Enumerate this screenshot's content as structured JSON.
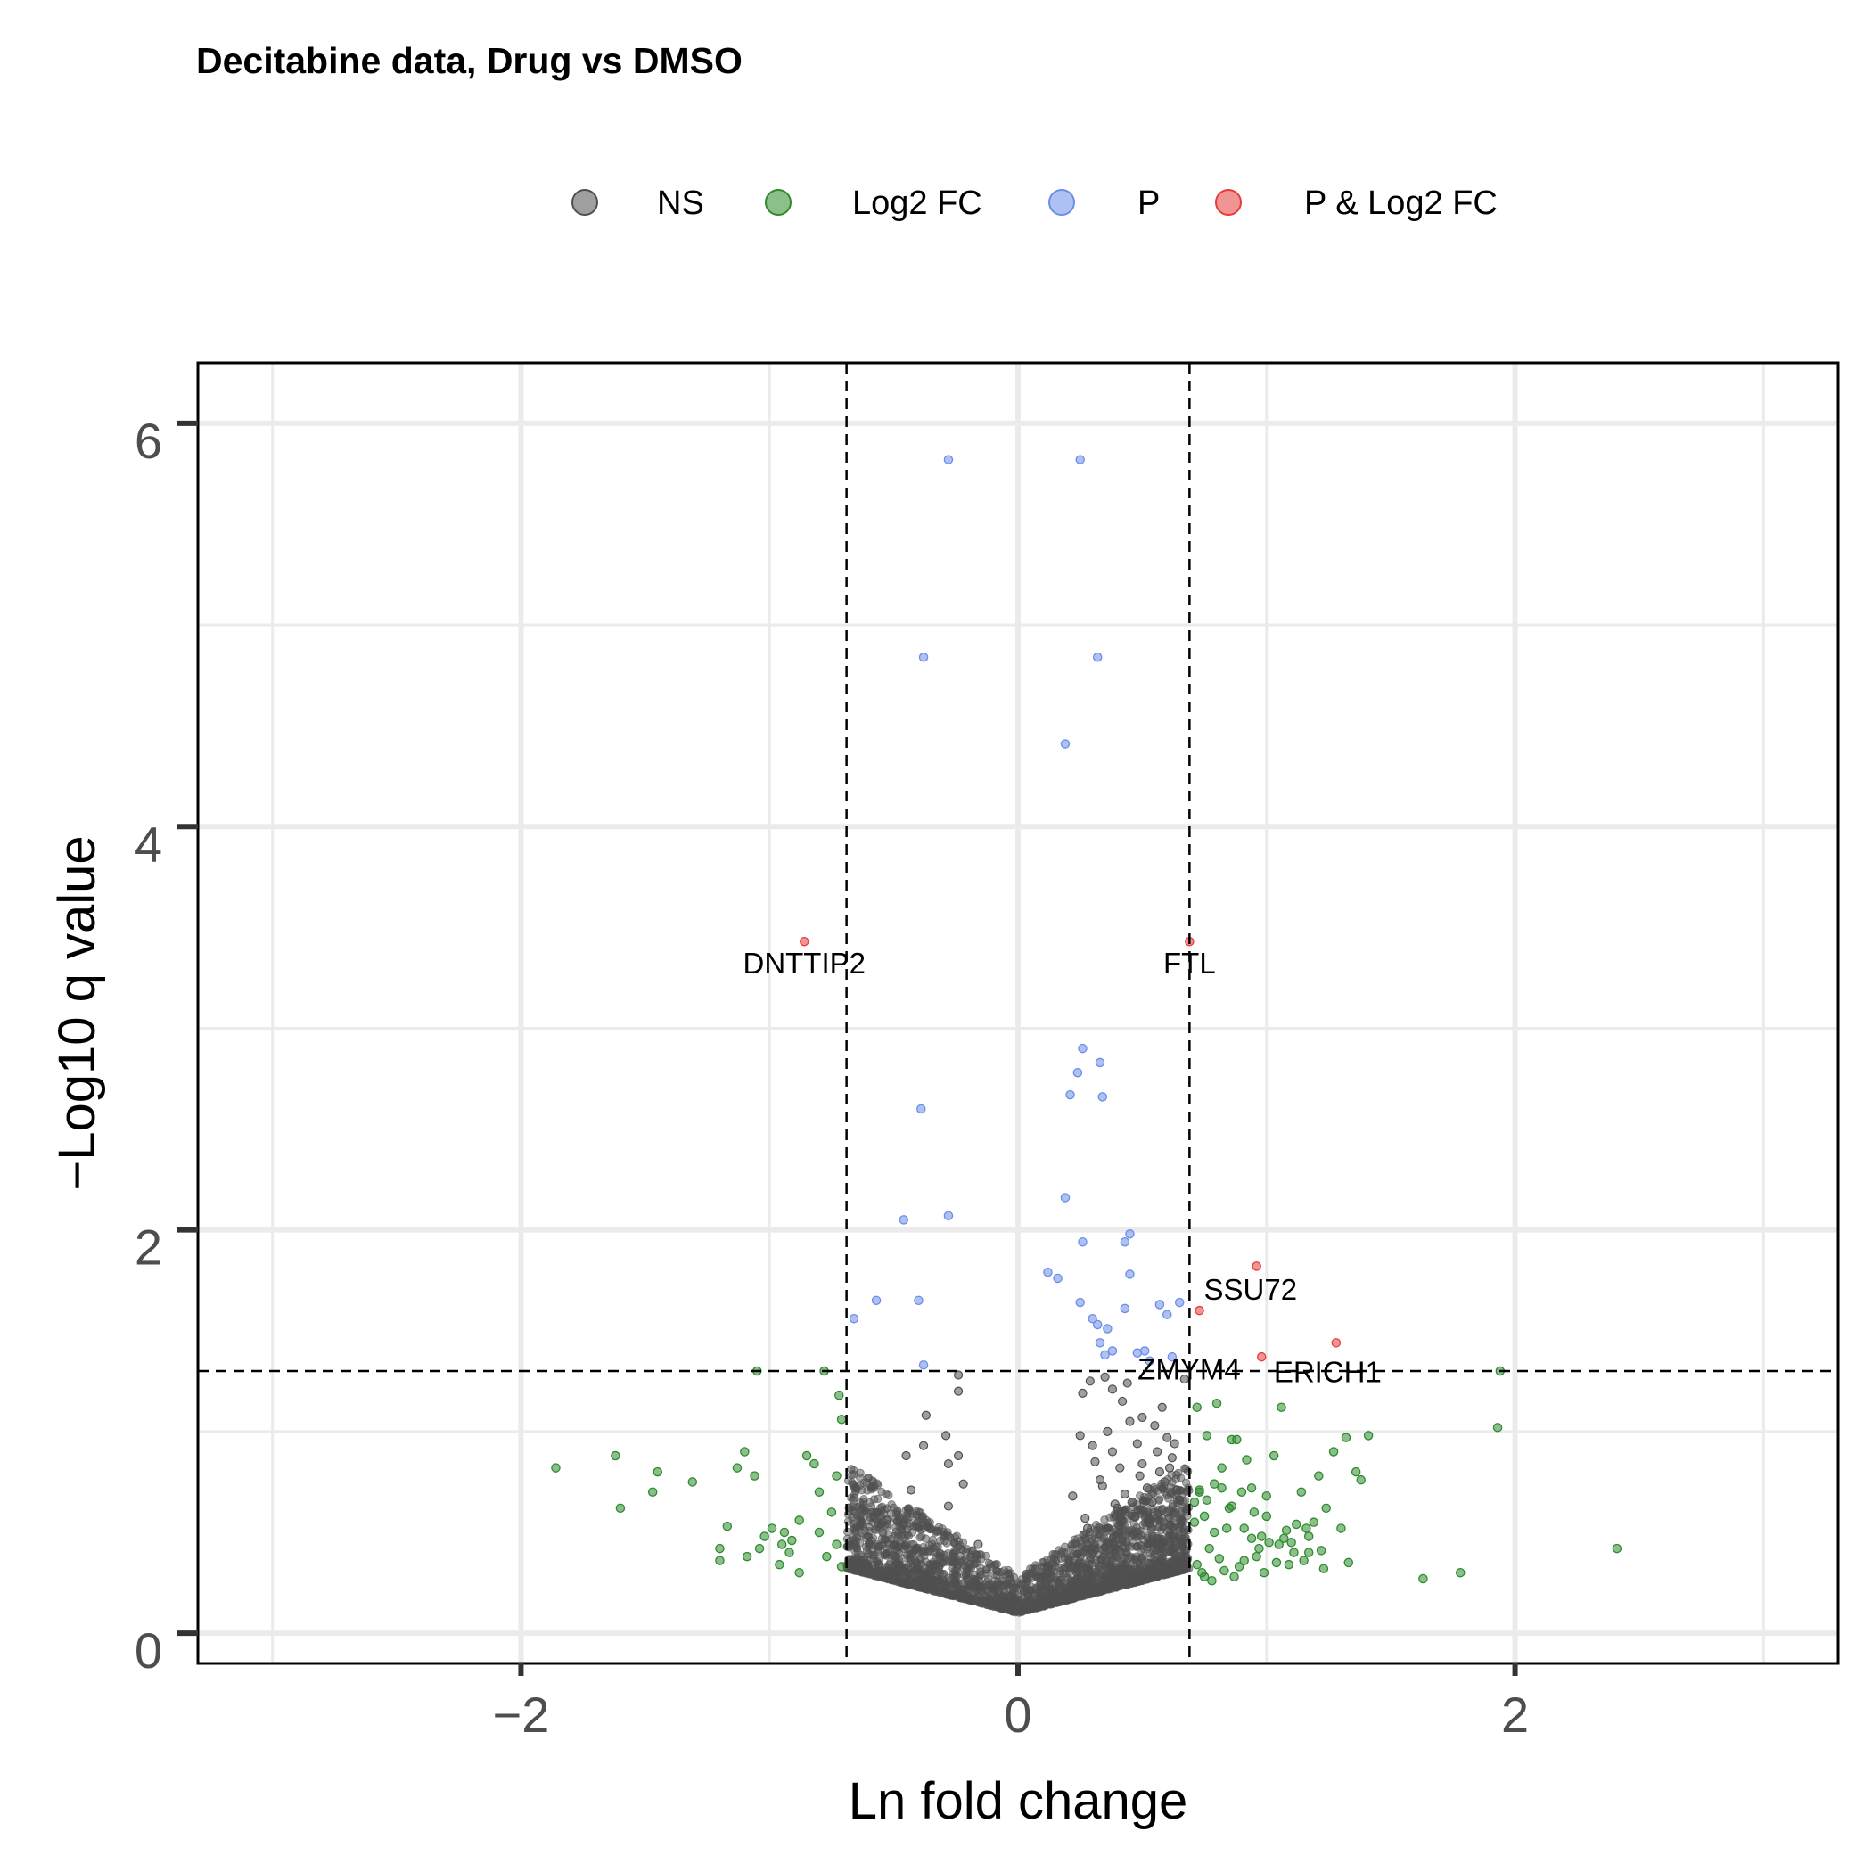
{
  "chart_data": {
    "type": "scatter",
    "title": "Decitabine data, Drug vs DMSO",
    "xlabel": "Ln fold change",
    "ylabel": "−Log10 q value",
    "xlim": [
      -3.3,
      3.3
    ],
    "ylim": [
      -0.15,
      6.3
    ],
    "x_ticks": [
      -2,
      0,
      2
    ],
    "x_tick_labels": [
      "−2",
      "0",
      "2"
    ],
    "y_ticks": [
      0,
      2,
      4,
      6
    ],
    "y_tick_labels": [
      "0",
      "2",
      "4",
      "6"
    ],
    "grid": true,
    "legend_position": "top",
    "thresholds": {
      "fold_change": [
        -0.69,
        0.69
      ],
      "q_value": 1.3
    },
    "colors": {
      "NS": "#505050",
      "Log2 FC": "#2e8b2e",
      "P": "#6b8ee8",
      "P & Log2 FC": "#e63c3c"
    },
    "legend": [
      "NS",
      "Log2 FC",
      "P",
      "P & Log2 FC"
    ],
    "series": [
      {
        "name": "P",
        "color": "#6b8ee8",
        "x": [
          -0.28,
          0.25,
          -0.38,
          0.32,
          0.19,
          0.26,
          0.33,
          0.24,
          0.21,
          0.34,
          -0.39,
          0.19,
          -0.28,
          -0.46,
          0.43,
          0.45,
          0.26,
          0.12,
          0.16,
          0.45,
          -0.57,
          -0.4,
          0.25,
          0.57,
          0.65,
          0.3,
          -0.66,
          0.32,
          0.43,
          0.6,
          0.36,
          0.33,
          0.51,
          0.62,
          0.48,
          0.53,
          0.35,
          0.38,
          -0.38
        ],
        "y": [
          5.82,
          5.82,
          4.84,
          4.84,
          4.41,
          2.9,
          2.83,
          2.78,
          2.67,
          2.66,
          2.6,
          2.16,
          2.07,
          2.05,
          1.94,
          1.98,
          1.94,
          1.79,
          1.76,
          1.78,
          1.65,
          1.65,
          1.64,
          1.63,
          1.64,
          1.56,
          1.56,
          1.53,
          1.61,
          1.58,
          1.51,
          1.44,
          1.4,
          1.37,
          1.39,
          1.35,
          1.38,
          1.4,
          1.33
        ]
      },
      {
        "name": "P & Log2 FC",
        "color": "#e63c3c",
        "x": [
          -0.86,
          0.69,
          0.96,
          0.73,
          1.28,
          0.98
        ],
        "y": [
          3.43,
          3.43,
          1.82,
          1.6,
          1.44,
          1.37
        ]
      },
      {
        "name": "Log2 FC",
        "color": "#2e8b2e",
        "x": [
          -1.86,
          -1.6,
          -1.62,
          -1.45,
          -1.47,
          -1.31,
          -1.17,
          -1.2,
          -1.13,
          -1.1,
          -1.06,
          -1.05,
          -1.02,
          -0.99,
          -0.95,
          -0.94,
          -0.92,
          -0.88,
          -0.85,
          -0.82,
          -0.8,
          -0.78,
          -0.75,
          -0.73,
          -0.72,
          -0.71,
          -1.04,
          -0.91,
          -0.8,
          -0.77,
          -0.73,
          -0.71,
          -1.2,
          -1.09,
          -0.96,
          -0.88,
          1.94,
          1.93,
          2.41,
          1.78,
          1.63,
          1.32,
          1.36,
          1.27,
          1.3,
          1.41,
          1.38,
          1.33,
          1.24,
          1.21,
          1.17,
          1.14,
          1.1,
          1.06,
          1.03,
          1.0,
          0.97,
          0.94,
          0.91,
          0.88,
          0.85,
          0.82,
          0.79,
          0.76,
          0.73,
          0.71,
          0.72,
          0.75,
          0.8,
          0.86,
          0.92,
          0.98,
          1.04,
          1.09,
          1.12,
          1.17,
          1.23,
          0.74,
          0.77,
          0.81,
          0.84,
          0.89,
          0.94,
          0.99,
          1.05,
          1.08,
          1.15,
          1.19,
          1.22,
          0.72,
          0.75,
          0.78,
          0.83,
          0.87,
          0.91,
          0.96,
          1.01,
          1.07,
          1.11,
          1.16,
          0.71,
          0.73,
          0.76,
          0.79,
          0.82,
          0.86,
          0.9,
          0.95,
          1.0
        ],
        "y": [
          0.82,
          0.62,
          0.88,
          0.8,
          0.7,
          0.75,
          0.53,
          0.36,
          0.82,
          0.9,
          0.78,
          1.3,
          0.48,
          0.52,
          0.44,
          0.5,
          0.4,
          0.56,
          0.88,
          0.84,
          0.7,
          1.3,
          0.6,
          0.78,
          1.18,
          1.06,
          0.42,
          0.46,
          0.5,
          0.38,
          0.44,
          0.33,
          0.42,
          0.38,
          0.34,
          0.3,
          1.3,
          1.02,
          0.42,
          0.3,
          0.27,
          0.97,
          0.8,
          0.9,
          0.52,
          0.98,
          0.76,
          0.35,
          0.62,
          0.78,
          0.48,
          0.7,
          0.45,
          1.12,
          0.88,
          0.58,
          0.42,
          0.72,
          0.52,
          0.96,
          0.62,
          0.82,
          0.74,
          0.98,
          0.7,
          0.55,
          1.12,
          0.58,
          1.14,
          0.96,
          0.86,
          0.48,
          0.35,
          0.34,
          0.54,
          0.4,
          0.32,
          0.3,
          0.42,
          0.37,
          0.52,
          0.33,
          0.47,
          0.3,
          0.44,
          0.51,
          0.36,
          0.55,
          0.41,
          0.34,
          0.28,
          0.26,
          0.31,
          0.28,
          0.36,
          0.38,
          0.45,
          0.47,
          0.4,
          0.52,
          0.65,
          0.71,
          0.66,
          0.5,
          0.72,
          0.63,
          0.7,
          0.6,
          0.68
        ]
      }
    ],
    "ns_points": {
      "name": "NS",
      "color": "#505050",
      "x": [
        -0.24,
        -0.24,
        -0.37,
        -0.29,
        -0.28,
        -0.24,
        -0.38,
        -0.45,
        -0.22,
        -0.28,
        -0.43,
        -0.53,
        -0.16,
        0.29,
        0.26,
        0.35,
        0.38,
        0.42,
        0.44,
        0.5,
        0.55,
        0.6,
        0.58,
        0.62,
        0.63,
        0.67,
        0.31,
        0.41,
        0.49,
        0.56,
        0.64,
        0.22,
        0.33,
        0.46,
        0.52,
        0.6,
        0.27,
        0.4,
        0.53,
        0.65,
        0.36,
        0.48,
        0.57,
        0.3,
        0.45,
        0.59,
        0.25,
        0.38,
        0.5,
        0.61,
        0.43,
        0.34,
        0.54,
        0.47,
        0.28,
        0.58,
        0.39
      ],
      "y": [
        1.28,
        1.2,
        1.08,
        0.98,
        0.84,
        0.88,
        0.93,
        0.88,
        0.74,
        0.63,
        0.71,
        0.56,
        0.44,
        1.25,
        1.19,
        1.27,
        1.21,
        1.15,
        1.24,
        1.07,
        1.03,
        0.97,
        1.12,
        0.87,
        0.94,
        1.26,
        0.85,
        0.82,
        0.78,
        0.9,
        0.71,
        0.68,
        0.76,
        0.65,
        0.72,
        0.6,
        0.57,
        0.62,
        0.55,
        0.66,
        1.0,
        0.94,
        0.8,
        0.93,
        1.05,
        0.75,
        0.98,
        0.9,
        0.84,
        0.82,
        0.69,
        0.73,
        0.65,
        0.58,
        0.52,
        0.61,
        0.64
      ]
    },
    "labels": [
      {
        "text": "DNTTIP2",
        "x": -0.86,
        "y": 3.43
      },
      {
        "text": "FTL",
        "x": 0.69,
        "y": 3.43
      },
      {
        "text": "SSU72",
        "x": 0.73,
        "y": 1.6
      },
      {
        "text": "ZMYM4",
        "x": 0.51,
        "y": 1.4
      },
      {
        "text": "ERICH1",
        "x": 1.28,
        "y": 1.44
      }
    ]
  }
}
